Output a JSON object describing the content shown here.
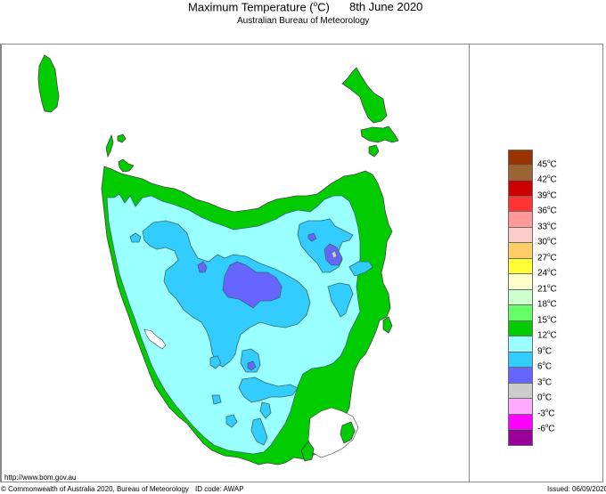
{
  "header": {
    "title_prefix": "Maximum Temperature (",
    "title_unit_sup": "o",
    "title_suffix": "C)",
    "date": "8th June 2020",
    "subtitle": "Australian Bureau of Meteorology"
  },
  "map": {
    "region": "Tasmania",
    "variable": "Maximum Temperature",
    "colors": {
      "ocean": "#ffffff",
      "band_12_15": "#00cc00",
      "band_9_12": "#99ffff",
      "band_6_9": "#33ccff",
      "band_3_6": "#6666ff",
      "band_0_3": "#cccccc",
      "contour_line": "#3a6a6a",
      "coastline": "#444444"
    }
  },
  "legend": {
    "items": [
      {
        "label": "45",
        "color": "#993300"
      },
      {
        "label": "42",
        "color": "#996633"
      },
      {
        "label": "39",
        "color": "#cc0000"
      },
      {
        "label": "36",
        "color": "#ff3333"
      },
      {
        "label": "33",
        "color": "#ff9999"
      },
      {
        "label": "30",
        "color": "#ffcccc"
      },
      {
        "label": "27",
        "color": "#ffcc66"
      },
      {
        "label": "24",
        "color": "#ffff33"
      },
      {
        "label": "21",
        "color": "#ffffcc"
      },
      {
        "label": "18",
        "color": "#ccffcc"
      },
      {
        "label": "15",
        "color": "#66ff66"
      },
      {
        "label": "12",
        "color": "#00cc00"
      },
      {
        "label": "9",
        "color": "#99ffff"
      },
      {
        "label": "6",
        "color": "#33ccff"
      },
      {
        "label": "3",
        "color": "#6666ff"
      },
      {
        "label": "0",
        "color": "#cccccc"
      },
      {
        "label": "-3",
        "color": "#ffaaff"
      },
      {
        "label": "-6",
        "color": "#ff00ff"
      },
      {
        "label": "",
        "color": "#990099"
      }
    ],
    "unit_sup": "o",
    "unit": "C"
  },
  "footer": {
    "url": "http://www.bom.gov.au",
    "copyright": "© Commonwealth of Australia 2020, Bureau of Meteorology",
    "id_code": "ID code: AWAP",
    "issued": "Issued: 06/09/2020"
  }
}
